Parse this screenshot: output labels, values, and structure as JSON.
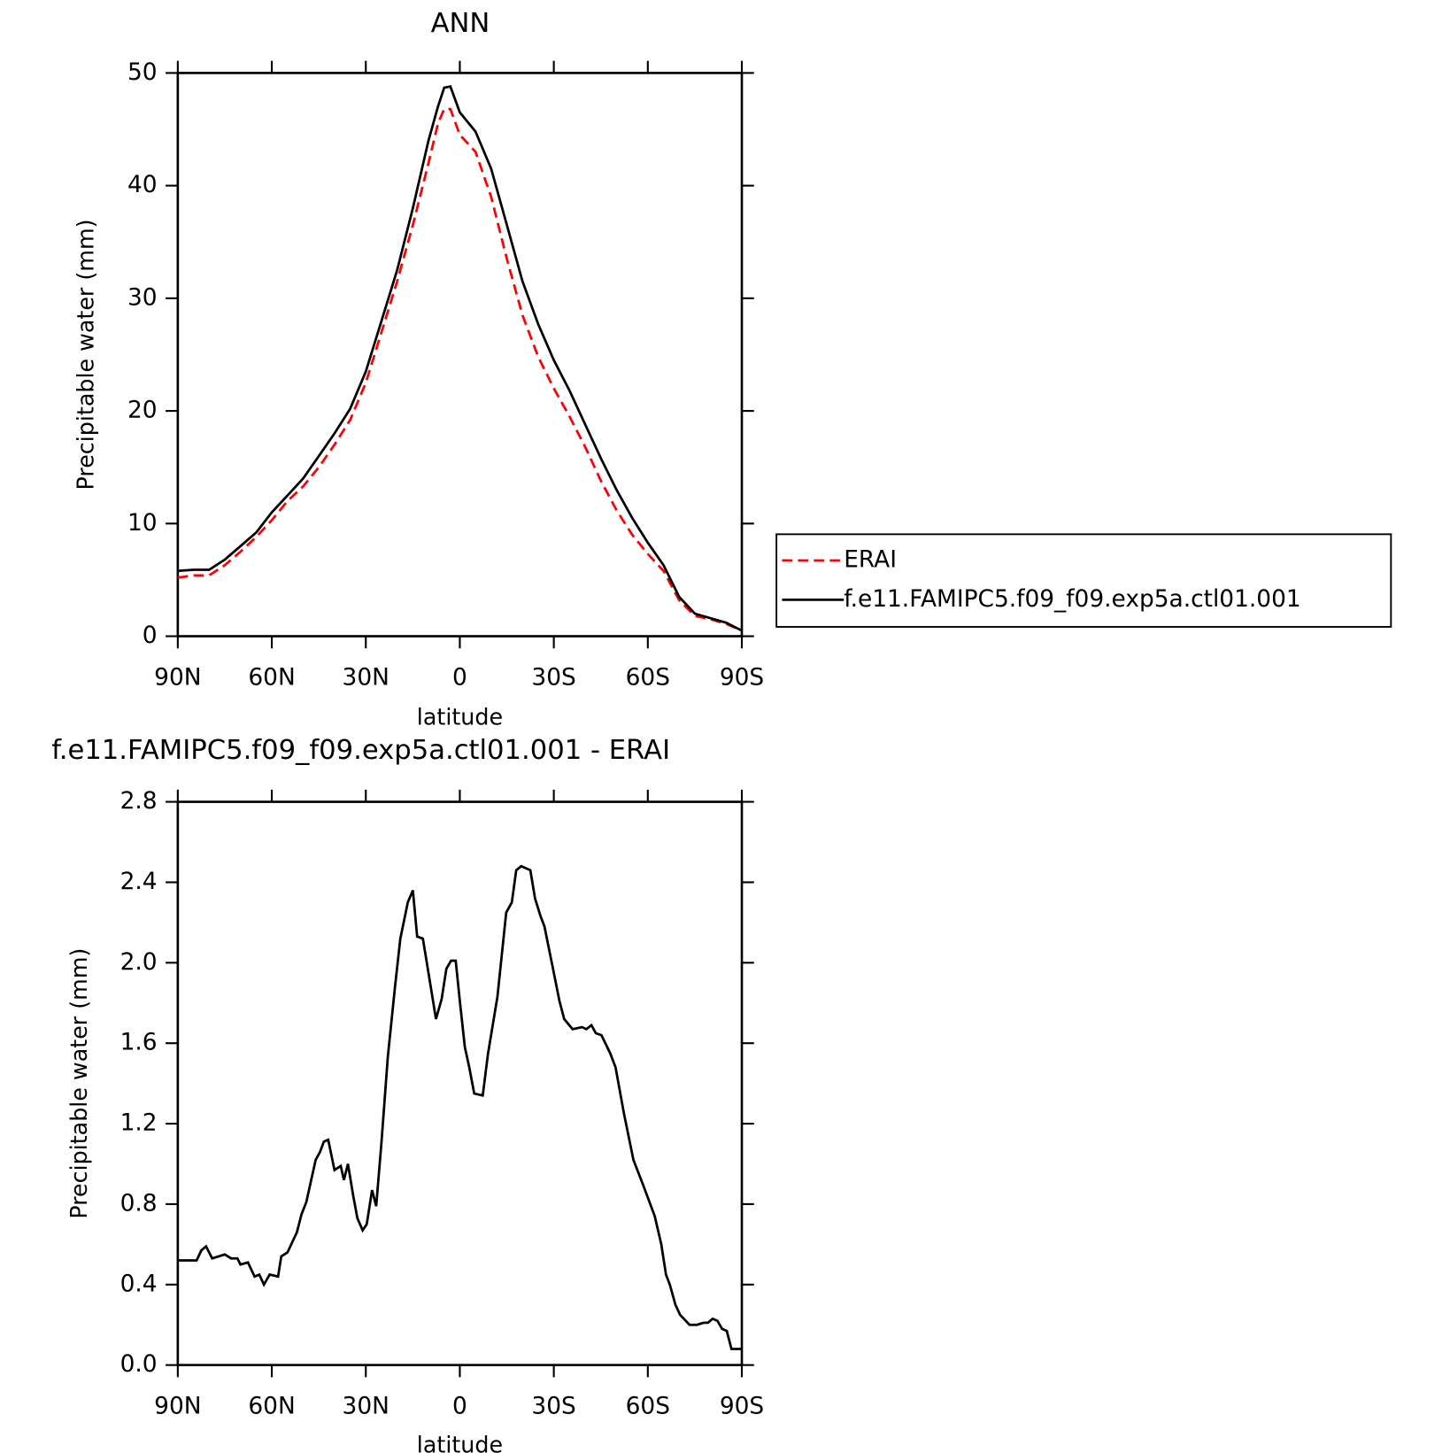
{
  "chart_data": [
    {
      "type": "line",
      "title": "ANN",
      "x_label": "latitude",
      "y_label": "Precipitable water (mm)",
      "x": [
        90,
        85,
        80,
        75,
        70,
        65,
        60,
        55,
        50,
        45,
        40,
        35,
        30,
        25,
        20,
        15,
        10,
        7,
        5,
        3,
        0,
        -5,
        -10,
        -15,
        -20,
        -25,
        -30,
        -35,
        -40,
        -45,
        -50,
        -55,
        -60,
        -65,
        -70,
        -75,
        -80,
        -85,
        -90
      ],
      "xlim": [
        90,
        -90
      ],
      "xticks": [
        {
          "value": 90,
          "label": "90N"
        },
        {
          "value": 60,
          "label": "60N"
        },
        {
          "value": 30,
          "label": "30N"
        },
        0,
        {
          "value": -30,
          "label": "30S"
        },
        {
          "value": -60,
          "label": "60S"
        },
        {
          "value": -90,
          "label": "90S"
        }
      ],
      "ylim": [
        0,
        50
      ],
      "yticks": [
        0,
        10,
        20,
        30,
        40,
        50
      ],
      "legend": "right",
      "series": [
        {
          "name": "ERAI",
          "color": "#ff0000",
          "line_style": "dashed",
          "values": [
            5.2,
            5.4,
            5.4,
            6.3,
            7.5,
            8.8,
            10.3,
            12.0,
            13.3,
            15.0,
            17.0,
            19.2,
            22.5,
            27.0,
            31.5,
            36.5,
            42.0,
            45.5,
            46.8,
            46.8,
            44.5,
            43.0,
            39.0,
            33.5,
            28.5,
            24.8,
            22.0,
            19.5,
            16.8,
            13.8,
            11.2,
            9.0,
            7.3,
            5.8,
            3.2,
            1.8,
            1.5,
            1.1,
            0.5
          ]
        },
        {
          "name": "f.e11.FAMIPC5.f09_f09.exp5a.ctl01.001",
          "color": "#000000",
          "line_style": "solid",
          "values": [
            5.8,
            5.9,
            5.9,
            6.8,
            8.0,
            9.2,
            11.0,
            12.5,
            14.0,
            16.0,
            18.0,
            20.2,
            23.5,
            28.0,
            32.5,
            38.0,
            44.0,
            47.0,
            48.7,
            48.8,
            46.5,
            44.8,
            41.5,
            36.5,
            31.5,
            27.7,
            24.5,
            21.8,
            18.8,
            15.8,
            13.0,
            10.5,
            8.3,
            6.3,
            3.5,
            2.0,
            1.6,
            1.2,
            0.5
          ]
        }
      ]
    },
    {
      "type": "line",
      "title": "f.e11.FAMIPC5.f09_f09.exp5a.ctl01.001 - ERAI",
      "x_label": "latitude",
      "y_label": "Precipitable water (mm)",
      "x": [
        90,
        84,
        82.5,
        81,
        79,
        75,
        73,
        71,
        70,
        67.6,
        65.5,
        64,
        62.5,
        60.7,
        58,
        57,
        55,
        52,
        50.5,
        49,
        46,
        44.6,
        43.4,
        42,
        40,
        38,
        37,
        35.7,
        34,
        32.7,
        31,
        29.7,
        28,
        26.7,
        25,
        23,
        20.7,
        19,
        16.6,
        15,
        13.6,
        11.8,
        10,
        7.6,
        5.8,
        4.3,
        2.8,
        1.3,
        0,
        -1.6,
        -3,
        -4.6,
        -7.3,
        -9,
        -12,
        -14.8,
        -16.6,
        -18,
        -19.6,
        -21,
        -22.5,
        -24,
        -25.8,
        -27,
        -30,
        -31.8,
        -33.3,
        -36,
        -39,
        -40.4,
        -42,
        -43.4,
        -45.2,
        -48,
        -49.7,
        -52.4,
        -55.4,
        -58.4,
        -62.2,
        -64.3,
        -65.8,
        -67,
        -68.8,
        -70.3,
        -73.3,
        -75.7,
        -77.8,
        -79.2,
        -80.7,
        -82.2,
        -83.7,
        -85.2,
        -86.7,
        -90
      ],
      "xlim": [
        90,
        -90
      ],
      "xticks": [
        {
          "value": 90,
          "label": "90N"
        },
        {
          "value": 60,
          "label": "60N"
        },
        {
          "value": 30,
          "label": "30N"
        },
        0,
        {
          "value": -30,
          "label": "30S"
        },
        {
          "value": -60,
          "label": "60S"
        },
        {
          "value": -90,
          "label": "90S"
        }
      ],
      "ylim": [
        0,
        2.8
      ],
      "yticks": [
        {
          "value": 0,
          "label": "0.0"
        },
        0.4,
        0.8,
        1.2,
        1.6,
        {
          "value": 2,
          "label": "2.0"
        },
        2.4,
        2.8
      ],
      "color": "#000000",
      "values": [
        0.52,
        0.52,
        0.57,
        0.59,
        0.53,
        0.55,
        0.53,
        0.53,
        0.5,
        0.51,
        0.44,
        0.45,
        0.4,
        0.45,
        0.44,
        0.54,
        0.56,
        0.66,
        0.75,
        0.81,
        1.02,
        1.06,
        1.11,
        1.12,
        0.97,
        0.99,
        0.92,
        1.0,
        0.84,
        0.73,
        0.67,
        0.7,
        0.87,
        0.79,
        1.11,
        1.53,
        1.88,
        2.12,
        2.3,
        2.36,
        2.13,
        2.12,
        1.95,
        1.72,
        1.82,
        1.97,
        2.01,
        2.01,
        1.81,
        1.58,
        1.48,
        1.35,
        1.34,
        1.55,
        1.83,
        2.25,
        2.3,
        2.46,
        2.48,
        2.47,
        2.46,
        2.32,
        2.23,
        2.18,
        1.95,
        1.81,
        1.72,
        1.67,
        1.68,
        1.67,
        1.69,
        1.65,
        1.64,
        1.55,
        1.48,
        1.25,
        1.02,
        0.9,
        0.74,
        0.6,
        0.45,
        0.4,
        0.3,
        0.25,
        0.2,
        0.2,
        0.21,
        0.21,
        0.23,
        0.22,
        0.18,
        0.17,
        0.08,
        0.08
      ]
    }
  ]
}
